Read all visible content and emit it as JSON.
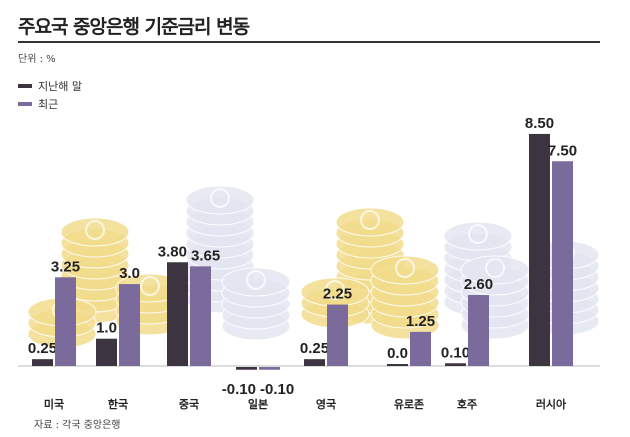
{
  "title": "주요국 중앙은행 기준금리 변동",
  "unit": "단위 : %",
  "source": "자료 : 각국 중앙은행",
  "chart_data": {
    "type": "bar",
    "title": "주요국 중앙은행 기준금리 변동",
    "categories": [
      "미국",
      "한국",
      "중국",
      "일본",
      "영국",
      "유로존",
      "호주",
      "러시아"
    ],
    "series": [
      {
        "name": "지난해 말",
        "color": "#3d3441",
        "values": [
          0.25,
          1.0,
          3.8,
          -0.1,
          0.25,
          0.0,
          0.1,
          8.5
        ],
        "labels": [
          "0.25",
          "1.0",
          "3.80",
          "-0.10",
          "0.25",
          "0.0",
          "0.10",
          "8.50"
        ]
      },
      {
        "name": "최근",
        "color": "#7b6a9c",
        "values": [
          3.25,
          3.0,
          3.65,
          -0.1,
          2.25,
          1.25,
          2.6,
          7.5
        ],
        "labels": [
          "3.25",
          "3.0",
          "3.65",
          "-0.10",
          "2.25",
          "1.25",
          "2.60",
          "7.50"
        ]
      }
    ],
    "legend": "top-left",
    "grid": false,
    "ylim": [
      -0.1,
      8.5
    ]
  }
}
